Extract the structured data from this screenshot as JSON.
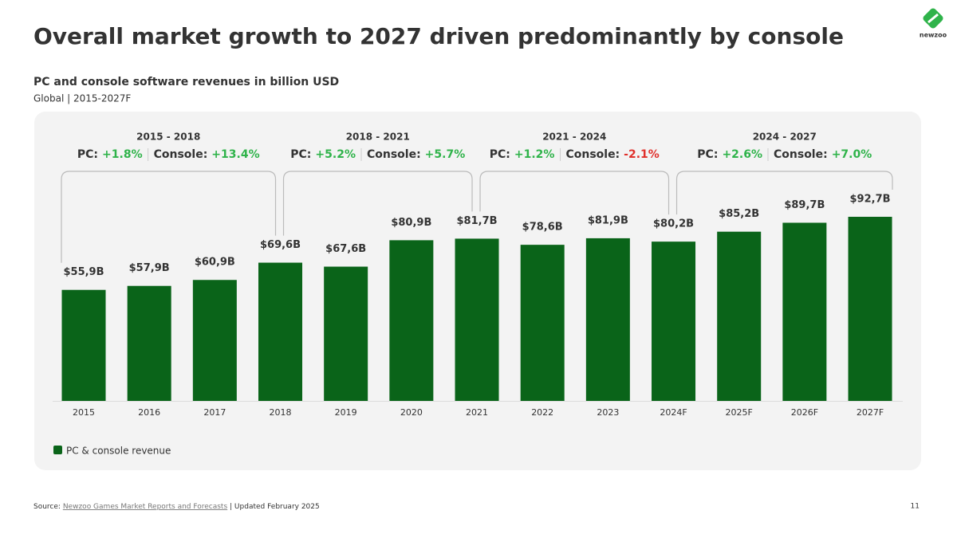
{
  "chart_data": {
    "type": "bar",
    "title": "Overall market growth to 2027 driven predominantly by console",
    "subtitle": "PC and console software revenues in billion USD",
    "caption": "Global | 2015-2027F",
    "categories": [
      "2015",
      "2016",
      "2017",
      "2018",
      "2019",
      "2020",
      "2021",
      "2022",
      "2023",
      "2024F",
      "2025F",
      "2026F",
      "2027F"
    ],
    "series": [
      {
        "name": "PC & console revenue",
        "color": "#0a6419",
        "values": [
          55.9,
          57.9,
          60.9,
          69.6,
          67.6,
          80.9,
          81.7,
          78.6,
          81.9,
          80.2,
          85.2,
          89.7,
          92.7
        ],
        "value_labels": [
          "$55,9B",
          "$57,9B",
          "$60,9B",
          "$69,6B",
          "$67,6B",
          "$80,9B",
          "$81,7B",
          "$78,6B",
          "$81,9B",
          "$80,2B",
          "$85,2B",
          "$89,7B",
          "$92,7B"
        ]
      }
    ],
    "periods": [
      {
        "label": "2015 - 2018",
        "pc_label": "PC:",
        "pc": "+1.8%",
        "pc_color": "#2fb34a",
        "console_label": "Console:",
        "console": "+13.4%",
        "console_color": "#2fb34a"
      },
      {
        "label": "2018 - 2021",
        "pc_label": "PC:",
        "pc": "+5.2%",
        "pc_color": "#2fb34a",
        "console_label": "Console:",
        "console": "+5.7%",
        "console_color": "#2fb34a"
      },
      {
        "label": "2021 - 2024",
        "pc_label": "PC:",
        "pc": "+1.2%",
        "pc_color": "#2fb34a",
        "console_label": "Console:",
        "console": "-2.1%",
        "console_color": "#e0302b"
      },
      {
        "label": "2024 - 2027",
        "pc_label": "PC:",
        "pc": "+2.6%",
        "pc_color": "#2fb34a",
        "console_label": "Console:",
        "console": "+7.0%",
        "console_color": "#2fb34a"
      }
    ]
  },
  "logo": "newzoo",
  "footer": {
    "source_label": "Source:",
    "source_link": "Newzoo Games Market Reports and Forecasts",
    "updated": "| Updated February 2025",
    "page": 11
  }
}
